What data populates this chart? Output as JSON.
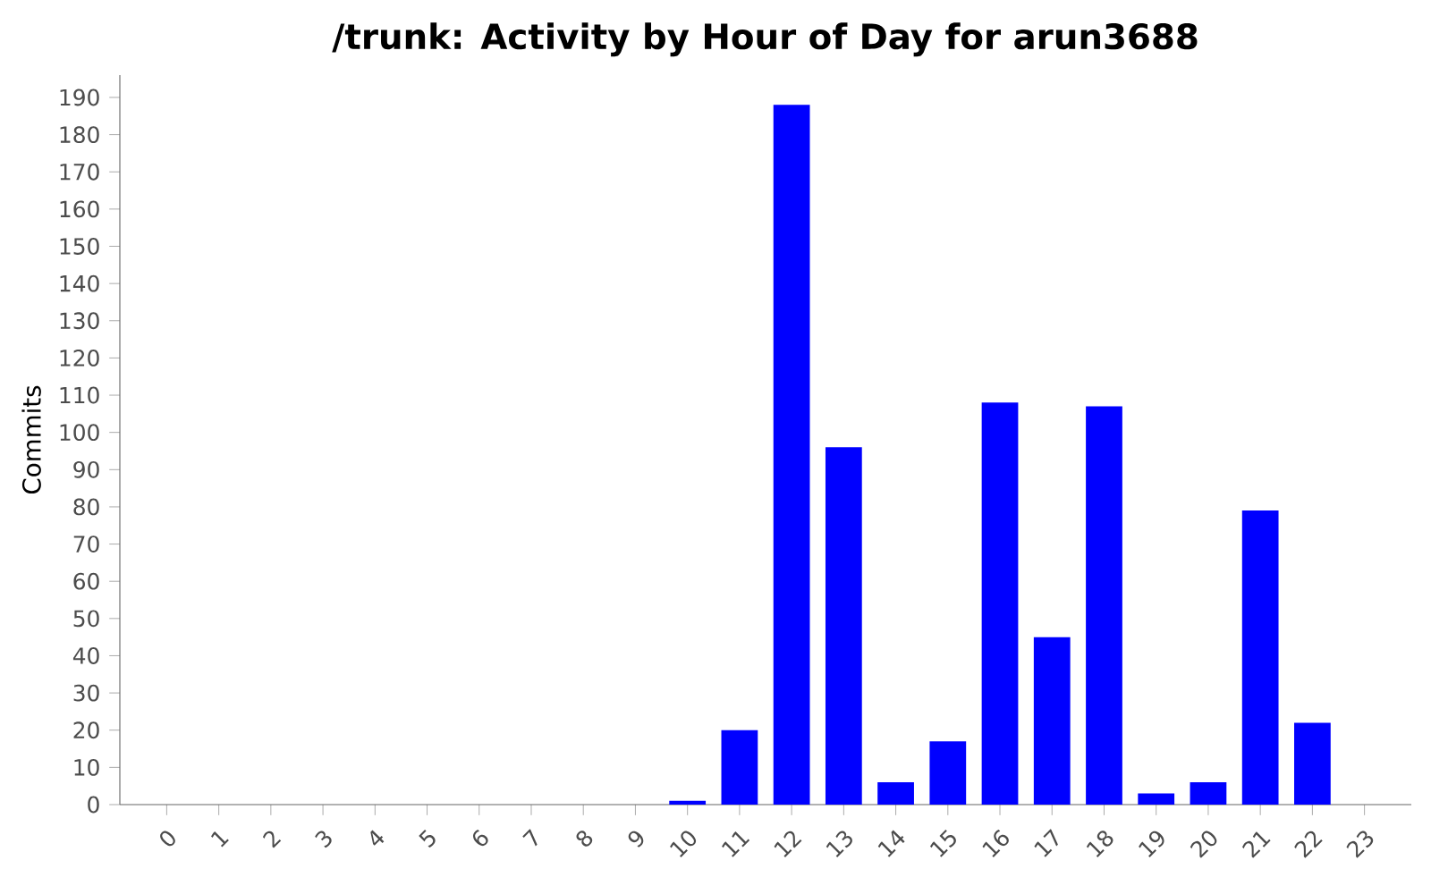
{
  "chart_data": {
    "type": "bar",
    "title": "/trunk: Activity by Hour of Day for arun3688",
    "ylabel": "Commits",
    "categories": [
      "0",
      "1",
      "2",
      "3",
      "4",
      "5",
      "6",
      "7",
      "8",
      "9",
      "10",
      "11",
      "12",
      "13",
      "14",
      "15",
      "16",
      "17",
      "18",
      "19",
      "20",
      "21",
      "22",
      "23"
    ],
    "values": [
      0,
      0,
      0,
      0,
      0,
      0,
      0,
      0,
      0,
      0,
      1,
      20,
      188,
      96,
      6,
      17,
      108,
      45,
      107,
      3,
      6,
      79,
      22,
      0
    ],
    "color": "#0000ff",
    "ylim": [
      0,
      196
    ],
    "yticks": [
      0,
      10,
      20,
      30,
      40,
      50,
      60,
      70,
      80,
      90,
      100,
      110,
      120,
      130,
      140,
      150,
      160,
      170,
      180,
      190
    ],
    "grid": false
  }
}
